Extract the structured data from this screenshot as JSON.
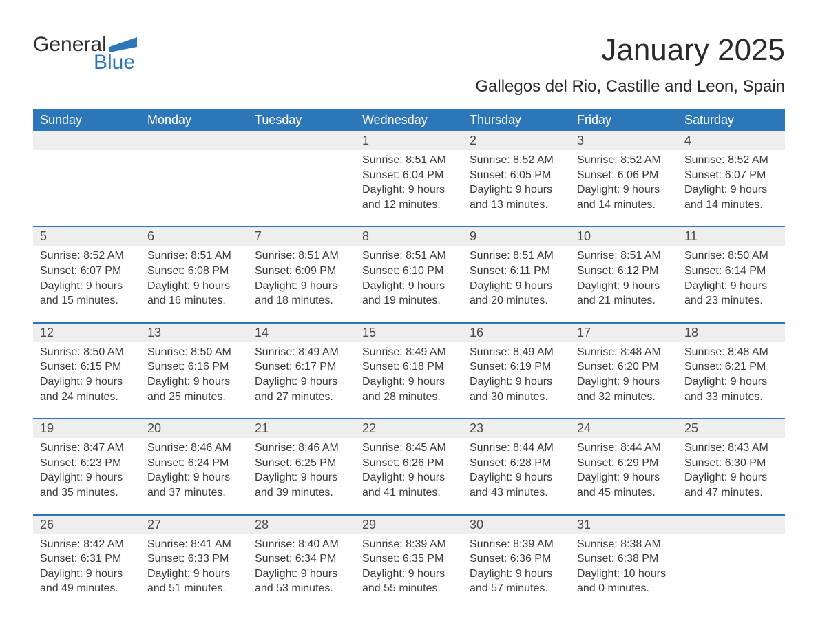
{
  "logo": {
    "word1": "General",
    "word2": "Blue",
    "brand_color": "#2d77b8",
    "text_color": "#2f2f2f"
  },
  "header": {
    "month_title": "January 2025",
    "location": "Gallegos del Rio, Castille and Leon, Spain"
  },
  "colors": {
    "header_bg": "#2d77b8",
    "header_text": "#ffffff",
    "daynum_bg": "#eeeeee",
    "body_text": "#3a3a3a",
    "page_bg": "#ffffff"
  },
  "weekday_labels": [
    "Sunday",
    "Monday",
    "Tuesday",
    "Wednesday",
    "Thursday",
    "Friday",
    "Saturday"
  ],
  "weeks": [
    [
      {
        "num": "",
        "sunrise": "",
        "sunset": "",
        "daylight1": "",
        "daylight2": ""
      },
      {
        "num": "",
        "sunrise": "",
        "sunset": "",
        "daylight1": "",
        "daylight2": ""
      },
      {
        "num": "",
        "sunrise": "",
        "sunset": "",
        "daylight1": "",
        "daylight2": ""
      },
      {
        "num": "1",
        "sunrise": "Sunrise: 8:51 AM",
        "sunset": "Sunset: 6:04 PM",
        "daylight1": "Daylight: 9 hours",
        "daylight2": "and 12 minutes."
      },
      {
        "num": "2",
        "sunrise": "Sunrise: 8:52 AM",
        "sunset": "Sunset: 6:05 PM",
        "daylight1": "Daylight: 9 hours",
        "daylight2": "and 13 minutes."
      },
      {
        "num": "3",
        "sunrise": "Sunrise: 8:52 AM",
        "sunset": "Sunset: 6:06 PM",
        "daylight1": "Daylight: 9 hours",
        "daylight2": "and 14 minutes."
      },
      {
        "num": "4",
        "sunrise": "Sunrise: 8:52 AM",
        "sunset": "Sunset: 6:07 PM",
        "daylight1": "Daylight: 9 hours",
        "daylight2": "and 14 minutes."
      }
    ],
    [
      {
        "num": "5",
        "sunrise": "Sunrise: 8:52 AM",
        "sunset": "Sunset: 6:07 PM",
        "daylight1": "Daylight: 9 hours",
        "daylight2": "and 15 minutes."
      },
      {
        "num": "6",
        "sunrise": "Sunrise: 8:51 AM",
        "sunset": "Sunset: 6:08 PM",
        "daylight1": "Daylight: 9 hours",
        "daylight2": "and 16 minutes."
      },
      {
        "num": "7",
        "sunrise": "Sunrise: 8:51 AM",
        "sunset": "Sunset: 6:09 PM",
        "daylight1": "Daylight: 9 hours",
        "daylight2": "and 18 minutes."
      },
      {
        "num": "8",
        "sunrise": "Sunrise: 8:51 AM",
        "sunset": "Sunset: 6:10 PM",
        "daylight1": "Daylight: 9 hours",
        "daylight2": "and 19 minutes."
      },
      {
        "num": "9",
        "sunrise": "Sunrise: 8:51 AM",
        "sunset": "Sunset: 6:11 PM",
        "daylight1": "Daylight: 9 hours",
        "daylight2": "and 20 minutes."
      },
      {
        "num": "10",
        "sunrise": "Sunrise: 8:51 AM",
        "sunset": "Sunset: 6:12 PM",
        "daylight1": "Daylight: 9 hours",
        "daylight2": "and 21 minutes."
      },
      {
        "num": "11",
        "sunrise": "Sunrise: 8:50 AM",
        "sunset": "Sunset: 6:14 PM",
        "daylight1": "Daylight: 9 hours",
        "daylight2": "and 23 minutes."
      }
    ],
    [
      {
        "num": "12",
        "sunrise": "Sunrise: 8:50 AM",
        "sunset": "Sunset: 6:15 PM",
        "daylight1": "Daylight: 9 hours",
        "daylight2": "and 24 minutes."
      },
      {
        "num": "13",
        "sunrise": "Sunrise: 8:50 AM",
        "sunset": "Sunset: 6:16 PM",
        "daylight1": "Daylight: 9 hours",
        "daylight2": "and 25 minutes."
      },
      {
        "num": "14",
        "sunrise": "Sunrise: 8:49 AM",
        "sunset": "Sunset: 6:17 PM",
        "daylight1": "Daylight: 9 hours",
        "daylight2": "and 27 minutes."
      },
      {
        "num": "15",
        "sunrise": "Sunrise: 8:49 AM",
        "sunset": "Sunset: 6:18 PM",
        "daylight1": "Daylight: 9 hours",
        "daylight2": "and 28 minutes."
      },
      {
        "num": "16",
        "sunrise": "Sunrise: 8:49 AM",
        "sunset": "Sunset: 6:19 PM",
        "daylight1": "Daylight: 9 hours",
        "daylight2": "and 30 minutes."
      },
      {
        "num": "17",
        "sunrise": "Sunrise: 8:48 AM",
        "sunset": "Sunset: 6:20 PM",
        "daylight1": "Daylight: 9 hours",
        "daylight2": "and 32 minutes."
      },
      {
        "num": "18",
        "sunrise": "Sunrise: 8:48 AM",
        "sunset": "Sunset: 6:21 PM",
        "daylight1": "Daylight: 9 hours",
        "daylight2": "and 33 minutes."
      }
    ],
    [
      {
        "num": "19",
        "sunrise": "Sunrise: 8:47 AM",
        "sunset": "Sunset: 6:23 PM",
        "daylight1": "Daylight: 9 hours",
        "daylight2": "and 35 minutes."
      },
      {
        "num": "20",
        "sunrise": "Sunrise: 8:46 AM",
        "sunset": "Sunset: 6:24 PM",
        "daylight1": "Daylight: 9 hours",
        "daylight2": "and 37 minutes."
      },
      {
        "num": "21",
        "sunrise": "Sunrise: 8:46 AM",
        "sunset": "Sunset: 6:25 PM",
        "daylight1": "Daylight: 9 hours",
        "daylight2": "and 39 minutes."
      },
      {
        "num": "22",
        "sunrise": "Sunrise: 8:45 AM",
        "sunset": "Sunset: 6:26 PM",
        "daylight1": "Daylight: 9 hours",
        "daylight2": "and 41 minutes."
      },
      {
        "num": "23",
        "sunrise": "Sunrise: 8:44 AM",
        "sunset": "Sunset: 6:28 PM",
        "daylight1": "Daylight: 9 hours",
        "daylight2": "and 43 minutes."
      },
      {
        "num": "24",
        "sunrise": "Sunrise: 8:44 AM",
        "sunset": "Sunset: 6:29 PM",
        "daylight1": "Daylight: 9 hours",
        "daylight2": "and 45 minutes."
      },
      {
        "num": "25",
        "sunrise": "Sunrise: 8:43 AM",
        "sunset": "Sunset: 6:30 PM",
        "daylight1": "Daylight: 9 hours",
        "daylight2": "and 47 minutes."
      }
    ],
    [
      {
        "num": "26",
        "sunrise": "Sunrise: 8:42 AM",
        "sunset": "Sunset: 6:31 PM",
        "daylight1": "Daylight: 9 hours",
        "daylight2": "and 49 minutes."
      },
      {
        "num": "27",
        "sunrise": "Sunrise: 8:41 AM",
        "sunset": "Sunset: 6:33 PM",
        "daylight1": "Daylight: 9 hours",
        "daylight2": "and 51 minutes."
      },
      {
        "num": "28",
        "sunrise": "Sunrise: 8:40 AM",
        "sunset": "Sunset: 6:34 PM",
        "daylight1": "Daylight: 9 hours",
        "daylight2": "and 53 minutes."
      },
      {
        "num": "29",
        "sunrise": "Sunrise: 8:39 AM",
        "sunset": "Sunset: 6:35 PM",
        "daylight1": "Daylight: 9 hours",
        "daylight2": "and 55 minutes."
      },
      {
        "num": "30",
        "sunrise": "Sunrise: 8:39 AM",
        "sunset": "Sunset: 6:36 PM",
        "daylight1": "Daylight: 9 hours",
        "daylight2": "and 57 minutes."
      },
      {
        "num": "31",
        "sunrise": "Sunrise: 8:38 AM",
        "sunset": "Sunset: 6:38 PM",
        "daylight1": "Daylight: 10 hours",
        "daylight2": "and 0 minutes."
      },
      {
        "num": "",
        "sunrise": "",
        "sunset": "",
        "daylight1": "",
        "daylight2": ""
      }
    ]
  ]
}
